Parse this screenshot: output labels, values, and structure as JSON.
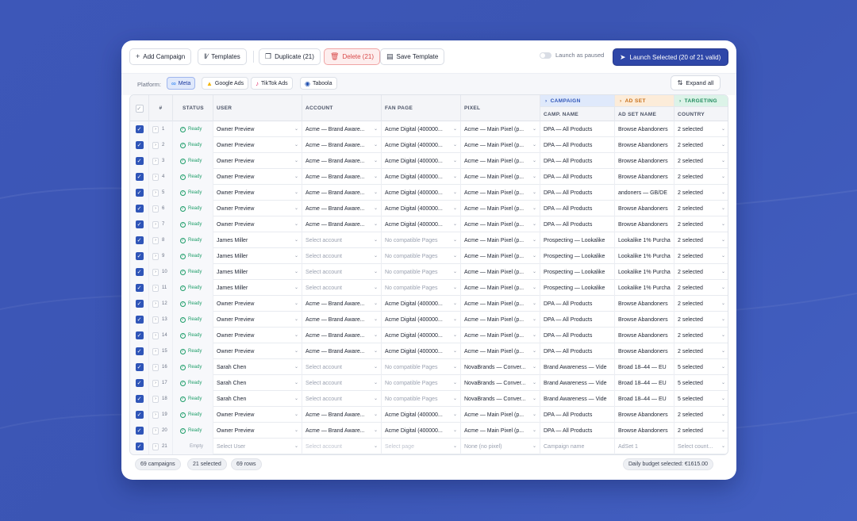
{
  "toolbar": {
    "add_campaign": "Add Campaign",
    "templates": "Templates",
    "duplicate": "Duplicate (21)",
    "delete": "Delete (21)",
    "save_template": "Save Template",
    "launch_paused": "Launch as paused",
    "launch_selected": "Launch Selected (20 of 21 valid)"
  },
  "platform": {
    "label": "Platform:",
    "options": [
      "Meta",
      "Google Ads",
      "TikTok Ads",
      "Taboola"
    ],
    "selected": "Meta",
    "expand_all": "Expand all"
  },
  "table": {
    "headers": {
      "num": "#",
      "status": "STATUS",
      "user": "USER",
      "account": "ACCOUNT",
      "fan_page": "FAN PAGE",
      "pixel": "PIXEL"
    },
    "groups": {
      "campaign": "CAMPAIGN",
      "ad_set": "AD SET",
      "targeting": "TARGETING"
    },
    "sub_headers": {
      "camp_name": "CAMP. NAME",
      "ad_set_name": "AD SET NAME",
      "country": "COUNTRY"
    },
    "rows": [
      {
        "n": "1",
        "status": "Ready",
        "user": "Owner Preview",
        "account": "Acme — Brand Aware...",
        "page": "Acme Digital (400000...",
        "pixel": "Acme — Main Pixel (p...",
        "camp": "DPA — All Products",
        "adset": "Browse Abandoners",
        "country": "2 selected"
      },
      {
        "n": "2",
        "status": "Ready",
        "user": "Owner Preview",
        "account": "Acme — Brand Aware...",
        "page": "Acme Digital (400000...",
        "pixel": "Acme — Main Pixel (p...",
        "camp": "DPA — All Products",
        "adset": "Browse Abandoners",
        "country": "2 selected"
      },
      {
        "n": "3",
        "status": "Ready",
        "user": "Owner Preview",
        "account": "Acme — Brand Aware...",
        "page": "Acme Digital (400000...",
        "pixel": "Acme — Main Pixel (p...",
        "camp": "DPA — All Products",
        "adset": "Browse Abandoners",
        "country": "2 selected"
      },
      {
        "n": "4",
        "status": "Ready",
        "user": "Owner Preview",
        "account": "Acme — Brand Aware...",
        "page": "Acme Digital (400000...",
        "pixel": "Acme — Main Pixel (p...",
        "camp": "DPA — All Products",
        "adset": "Browse Abandoners",
        "country": "2 selected"
      },
      {
        "n": "5",
        "status": "Ready",
        "user": "Owner Preview",
        "account": "Acme — Brand Aware...",
        "page": "Acme Digital (400000...",
        "pixel": "Acme — Main Pixel (p...",
        "camp": "DPA — All Products",
        "adset": "andoners — GB/DE",
        "country": "2 selected"
      },
      {
        "n": "6",
        "status": "Ready",
        "user": "Owner Preview",
        "account": "Acme — Brand Aware...",
        "page": "Acme Digital (400000...",
        "pixel": "Acme — Main Pixel (p...",
        "camp": "DPA — All Products",
        "adset": "Browse Abandoners",
        "country": "2 selected"
      },
      {
        "n": "7",
        "status": "Ready",
        "user": "Owner Preview",
        "account": "Acme — Brand Aware...",
        "page": "Acme Digital (400000...",
        "pixel": "Acme — Main Pixel (p...",
        "camp": "DPA — All Products",
        "adset": "Browse Abandoners",
        "country": "2 selected"
      },
      {
        "n": "8",
        "status": "Ready",
        "user": "James Miller",
        "account": "Select account",
        "page": "No compatible Pages",
        "pixel": "Acme — Main Pixel (p...",
        "camp": "Prospecting — Lookalike",
        "adset": "Lookalike 1% Purcha",
        "country": "2 selected"
      },
      {
        "n": "9",
        "status": "Ready",
        "user": "James Miller",
        "account": "Select account",
        "page": "No compatible Pages",
        "pixel": "Acme — Main Pixel (p...",
        "camp": "Prospecting — Lookalike",
        "adset": "Lookalike 1% Purcha",
        "country": "2 selected"
      },
      {
        "n": "10",
        "status": "Ready",
        "user": "James Miller",
        "account": "Select account",
        "page": "No compatible Pages",
        "pixel": "Acme — Main Pixel (p...",
        "camp": "Prospecting — Lookalike",
        "adset": "Lookalike 1% Purcha",
        "country": "2 selected"
      },
      {
        "n": "11",
        "status": "Ready",
        "user": "James Miller",
        "account": "Select account",
        "page": "No compatible Pages",
        "pixel": "Acme — Main Pixel (p...",
        "camp": "Prospecting — Lookalike",
        "adset": "Lookalike 1% Purcha",
        "country": "2 selected"
      },
      {
        "n": "12",
        "status": "Ready",
        "user": "Owner Preview",
        "account": "Acme — Brand Aware...",
        "page": "Acme Digital (400000...",
        "pixel": "Acme — Main Pixel (p...",
        "camp": "DPA — All Products",
        "adset": "Browse Abandoners",
        "country": "2 selected"
      },
      {
        "n": "13",
        "status": "Ready",
        "user": "Owner Preview",
        "account": "Acme — Brand Aware...",
        "page": "Acme Digital (400000...",
        "pixel": "Acme — Main Pixel (p...",
        "camp": "DPA — All Products",
        "adset": "Browse Abandoners",
        "country": "2 selected"
      },
      {
        "n": "14",
        "status": "Ready",
        "user": "Owner Preview",
        "account": "Acme — Brand Aware...",
        "page": "Acme Digital (400000...",
        "pixel": "Acme — Main Pixel (p...",
        "camp": "DPA — All Products",
        "adset": "Browse Abandoners",
        "country": "2 selected"
      },
      {
        "n": "15",
        "status": "Ready",
        "user": "Owner Preview",
        "account": "Acme — Brand Aware...",
        "page": "Acme Digital (400000...",
        "pixel": "Acme — Main Pixel (p...",
        "camp": "DPA — All Products",
        "adset": "Browse Abandoners",
        "country": "2 selected"
      },
      {
        "n": "16",
        "status": "Ready",
        "user": "Sarah Chen",
        "account": "Select account",
        "page": "No compatible Pages",
        "pixel": "NovaBrands — Conver...",
        "camp": "Brand Awareness — Vide",
        "adset": "Broad 18–44 — EU",
        "country": "5 selected"
      },
      {
        "n": "17",
        "status": "Ready",
        "user": "Sarah Chen",
        "account": "Select account",
        "page": "No compatible Pages",
        "pixel": "NovaBrands — Conver...",
        "camp": "Brand Awareness — Vide",
        "adset": "Broad 18–44 — EU",
        "country": "5 selected"
      },
      {
        "n": "18",
        "status": "Ready",
        "user": "Sarah Chen",
        "account": "Select account",
        "page": "No compatible Pages",
        "pixel": "NovaBrands — Conver...",
        "camp": "Brand Awareness — Vide",
        "adset": "Broad 18–44 — EU",
        "country": "5 selected"
      },
      {
        "n": "19",
        "status": "Ready",
        "user": "Owner Preview",
        "account": "Acme — Brand Aware...",
        "page": "Acme Digital (400000...",
        "pixel": "Acme — Main Pixel (p...",
        "camp": "DPA — All Products",
        "adset": "Browse Abandoners",
        "country": "2 selected"
      },
      {
        "n": "20",
        "status": "Ready",
        "user": "Owner Preview",
        "account": "Acme — Brand Aware...",
        "page": "Acme Digital (400000...",
        "pixel": "Acme — Main Pixel (p...",
        "camp": "DPA — All Products",
        "adset": "Browse Abandoners",
        "country": "2 selected"
      },
      {
        "n": "21",
        "status": "Empty",
        "user": "Select User",
        "account": "Select account",
        "page": "Select page",
        "pixel": "None (no pixel)",
        "camp": "Campaign name",
        "adset": "AdSet 1",
        "country": "Select count..."
      }
    ]
  },
  "footer": {
    "campaigns": "69 campaigns",
    "selected": "21 selected",
    "rows": "69 rows",
    "budget": "Daily budget selected: €1615.00"
  },
  "colors": {
    "accent": "#2f55b8",
    "ready": "#1f9e6a",
    "delete": "#d84848",
    "campaign_group": "#dfe9fb",
    "adset_group": "#fcecd9",
    "targeting_group": "#dcf3e8"
  }
}
